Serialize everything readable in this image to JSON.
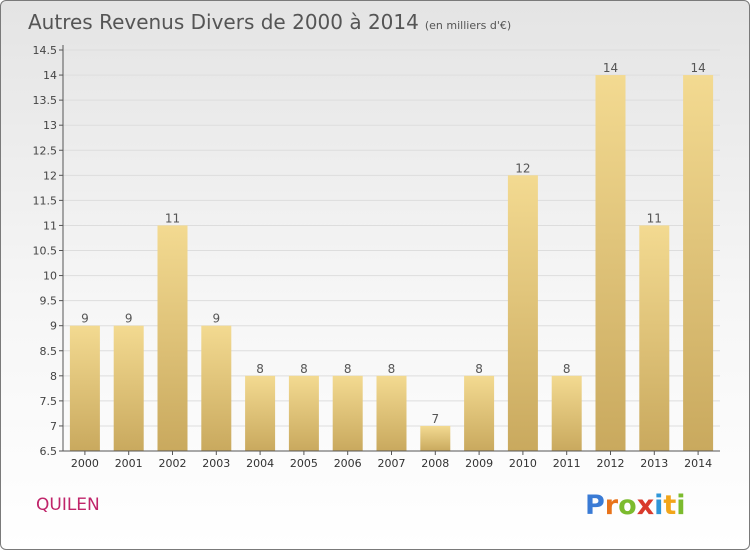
{
  "title": "Autres Revenus Divers de 2000 à 2014",
  "unit": "(en milliers d'€)",
  "commune": "QUILEN",
  "logo": {
    "text": "Proxiti",
    "letters": [
      {
        "ch": "P",
        "color": "#3a7bd5"
      },
      {
        "ch": "r",
        "color": "#e8731a"
      },
      {
        "ch": "o",
        "color": "#7cbb2e"
      },
      {
        "ch": "x",
        "color": "#d93a2c"
      },
      {
        "ch": "i",
        "color": "#2f96d8"
      },
      {
        "ch": "t",
        "color": "#f2a51a"
      },
      {
        "ch": "i",
        "color": "#7cbb2e"
      }
    ]
  },
  "colors": {
    "bar_light": "#f3da91",
    "bar_dark": "#c9a95e",
    "axis": "#555555",
    "grid": "#dddddd"
  },
  "chart_data": {
    "type": "bar",
    "categories": [
      "2000",
      "2001",
      "2002",
      "2003",
      "2004",
      "2005",
      "2006",
      "2007",
      "2008",
      "2009",
      "2010",
      "2011",
      "2012",
      "2013",
      "2014"
    ],
    "values": [
      9,
      9,
      11,
      9,
      8,
      8,
      8,
      8,
      7,
      8,
      12,
      8,
      14,
      11,
      14
    ],
    "data_labels": [
      "9",
      "9",
      "11",
      "9",
      "8",
      "8",
      "8",
      "8",
      "7",
      "8",
      "12",
      "8",
      "14",
      "11",
      "14"
    ],
    "ylim": [
      6.5,
      14.5
    ],
    "yticks": [
      6.5,
      7,
      7.5,
      8,
      8.5,
      9,
      9.5,
      10,
      10.5,
      11,
      11.5,
      12,
      12.5,
      13,
      13.5,
      14,
      14.5
    ],
    "ytick_labels": [
      "6.5",
      "7",
      "7.5",
      "8",
      "8.5",
      "9",
      "9.5",
      "10",
      "10.5",
      "11",
      "11.5",
      "12",
      "12.5",
      "13",
      "13.5",
      "14",
      "14.5"
    ],
    "grid": "horizontal",
    "xlabel": "",
    "ylabel": ""
  }
}
